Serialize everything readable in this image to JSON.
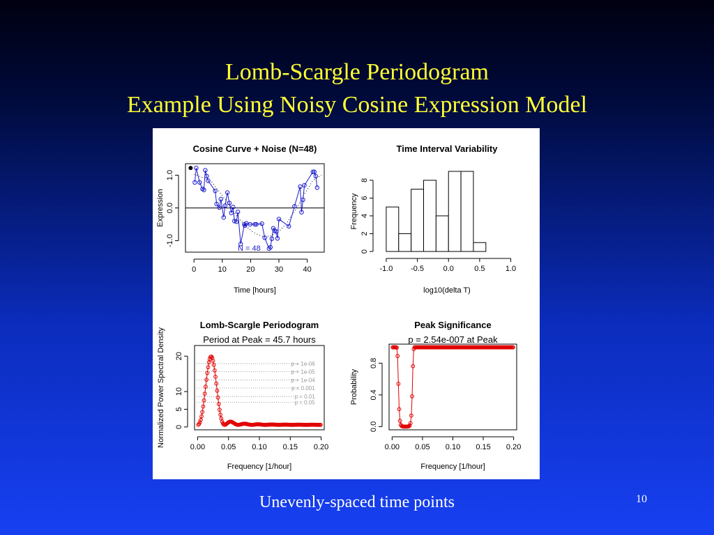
{
  "slide": {
    "title_line1": "Lomb-Scargle Periodogram",
    "title_line2": "Example Using Noisy Cosine Expression Model",
    "caption": "Unevenly-spaced time points",
    "page_number": "10"
  },
  "chart_data": [
    {
      "type": "scatter",
      "title": "Cosine Curve + Noise (N=48)",
      "xlabel": "Time [hours]",
      "ylabel": "Expression",
      "xlim": [
        -3,
        46
      ],
      "ylim": [
        -1.35,
        1.35
      ],
      "xticks": [
        "0",
        "10",
        "20",
        "30",
        "40"
      ],
      "yticks": [
        "-1.0",
        "0.0",
        "1.0"
      ],
      "annotation": "N = 48",
      "reference_line_y": 0,
      "x": [
        0.3,
        0.8,
        2.0,
        3.0,
        3.5,
        4.0,
        4.5,
        5.0,
        7.5,
        8.0,
        9.0,
        9.5,
        10.5,
        11.0,
        11.8,
        12.5,
        13.2,
        13.8,
        14.3,
        15.0,
        15.5,
        16.5,
        17.8,
        18.0,
        18.5,
        19.8,
        21.5,
        22.0,
        24.0,
        25.0,
        26.5,
        27.0,
        27.5,
        28.0,
        28.5,
        29.0,
        29.5,
        30.0,
        33.5,
        35.5,
        37.5,
        38.0,
        38.5,
        39.0,
        42.0,
        42.5,
        43.0,
        43.5
      ],
      "y": [
        0.78,
        1.22,
        0.78,
        0.58,
        0.55,
        1.15,
        0.97,
        0.83,
        0.52,
        0.12,
        0.01,
        0.27,
        -0.29,
        0.07,
        0.47,
        0.15,
        -0.15,
        0.03,
        -0.4,
        -0.42,
        -0.12,
        -1.1,
        -0.5,
        -0.54,
        -0.47,
        -0.5,
        -0.5,
        -0.5,
        -0.48,
        -0.91,
        -1.24,
        -1.2,
        -0.94,
        -0.62,
        -0.69,
        -0.72,
        -0.93,
        -0.34,
        -0.56,
        0.05,
        0.65,
        -0.13,
        0.25,
        0.69,
        1.1,
        1.1,
        0.97,
        0.62
      ],
      "x_smooth": [
        0,
        6,
        12,
        15,
        18,
        21,
        24,
        27,
        30,
        33,
        36,
        39,
        42,
        45
      ],
      "y_smooth": [
        1.03,
        0.83,
        0.15,
        -0.23,
        -0.53,
        -0.75,
        -0.86,
        -0.86,
        -0.72,
        -0.44,
        -0.04,
        0.42,
        0.84,
        1.0
      ],
      "first_point_filled": true
    },
    {
      "type": "bar",
      "title": "Time Interval Variability",
      "xlabel": "log10(delta T)",
      "ylabel": "Frequency",
      "xlim": [
        -1.1,
        1.05
      ],
      "ylim": [
        0,
        9
      ],
      "xticks": [
        "-1.0",
        "-0.5",
        "0.0",
        "0.5",
        "1.0"
      ],
      "yticks": [
        "0",
        "2",
        "4",
        "6",
        "8"
      ],
      "bin_edges": [
        -1.0,
        -0.8,
        -0.6,
        -0.4,
        -0.2,
        0.0,
        0.2,
        0.4,
        0.6
      ],
      "values": [
        5,
        2,
        7,
        8,
        4,
        9,
        9,
        1
      ]
    },
    {
      "type": "line",
      "title": "Lomb-Scargle Periodogram",
      "subtitle": "Period at Peak = 45.7 hours",
      "xlabel": "Frequency [1/hour]",
      "ylabel": "Normalized Power Spectral Density",
      "xlim": [
        -0.005,
        0.205
      ],
      "ylim": [
        -0.8,
        23
      ],
      "xticks": [
        "0.00",
        "0.05",
        "0.10",
        "0.15",
        "0.20"
      ],
      "yticks": [
        "0",
        "5",
        "10",
        "20"
      ],
      "peak": {
        "frequency": 0.0219,
        "power": 19.3
      },
      "thresholds": [
        {
          "label": "p = 1e-06",
          "power": 17.9
        },
        {
          "label": "p = 1e-05",
          "power": 15.6
        },
        {
          "label": "p = 1e-04",
          "power": 13.3
        },
        {
          "label": "p = 0.001",
          "power": 11.0
        },
        {
          "label": "p = 0.01",
          "power": 8.6
        },
        {
          "label": "p = 0.05",
          "power": 7.0
        }
      ]
    },
    {
      "type": "line",
      "title": "Peak Significance",
      "subtitle": "p =  2.54e-007  at Peak",
      "xlabel": "Frequency [1/hour]",
      "ylabel": "Probability",
      "xlim": [
        -0.005,
        0.205
      ],
      "ylim": [
        -0.04,
        1.04
      ],
      "xticks": [
        "0.00",
        "0.05",
        "0.10",
        "0.15",
        "0.20"
      ],
      "yticks": [
        "0.0",
        "0.4",
        "0.8"
      ]
    }
  ]
}
